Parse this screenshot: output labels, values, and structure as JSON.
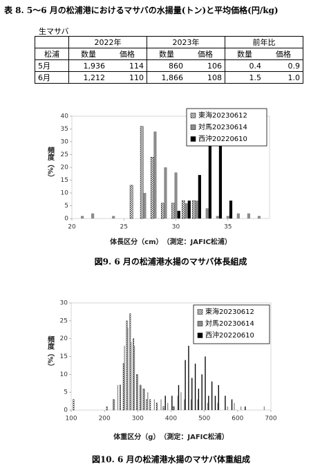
{
  "table": {
    "title": "表 8. 5～6 月の松浦港におけるマサバの水揚量(トン)と平均価格(円/kg)",
    "label": "生マサバ",
    "groups": [
      "2022年",
      "2023年",
      "前年比"
    ],
    "columns": [
      "松浦",
      "数量",
      "価格",
      "数量",
      "価格",
      "数量",
      "価格"
    ],
    "rows": [
      [
        "5月",
        "1,936",
        "114",
        "860",
        "106",
        "0.4",
        "0.9"
      ],
      [
        "6月",
        "1,212",
        "110",
        "1,866",
        "108",
        "1.5",
        "1.0"
      ]
    ]
  },
  "chart_data": [
    {
      "type": "bar",
      "xlabel": "体長区分（cm）　（測定：JAFIC松浦）",
      "ylabel": "頻度（%）",
      "caption": "図9.  6 月の松浦港水揚のマサバ体長組成",
      "x": [
        21,
        22,
        24,
        26,
        27,
        28,
        29,
        30,
        31,
        32,
        33,
        34,
        35,
        36,
        37,
        38
      ],
      "series": [
        {
          "name": "東海20230612",
          "color": "#ffffff",
          "hatch": true,
          "values": [
            0,
            0,
            0,
            13,
            36,
            24,
            6,
            6,
            7,
            7,
            0,
            0,
            0,
            0,
            0,
            0
          ]
        },
        {
          "name": "対馬20230614",
          "color": "#8c8c8c",
          "values": [
            1,
            2,
            1,
            0,
            10,
            34,
            20,
            18,
            6,
            7,
            4,
            1,
            1,
            2,
            2,
            1
          ]
        },
        {
          "name": "西沖20220610",
          "color": "#000000",
          "values": [
            0,
            0,
            0,
            0,
            0,
            0,
            0,
            3,
            7,
            17,
            38,
            33,
            7,
            0,
            0,
            0
          ]
        }
      ],
      "xlim": [
        20,
        39
      ],
      "xticks": [
        20,
        25,
        30,
        35
      ],
      "ylim": [
        0,
        40
      ],
      "yticks": [
        0,
        5,
        10,
        15,
        20,
        25,
        30,
        35,
        40
      ],
      "legend": "upper right"
    },
    {
      "type": "bar",
      "xlabel": "体重区分（g）　（測定：JAFIC松浦）",
      "ylabel": "頻度（%）",
      "caption": "図10. 6 月の松浦港水揚のマサバ体重組成",
      "x": [
        110,
        210,
        230,
        240,
        250,
        260,
        270,
        280,
        290,
        300,
        310,
        320,
        330,
        340,
        350,
        360,
        370,
        380,
        390,
        400,
        410,
        420,
        430,
        440,
        450,
        460,
        470,
        480,
        490,
        500,
        510,
        520,
        530,
        540,
        560,
        570,
        580,
        590,
        610,
        620,
        680
      ],
      "series": [
        {
          "name": "東海20230612",
          "color": "#ffffff",
          "hatch": true,
          "values": [
            3,
            1,
            3,
            0,
            7,
            13,
            25,
            27,
            20,
            10,
            7,
            6,
            3,
            3,
            0,
            2,
            0,
            1,
            0,
            0,
            1,
            0,
            0,
            0,
            0,
            0,
            0,
            0,
            0,
            0,
            0,
            0,
            0,
            0,
            0,
            0,
            0,
            0,
            0,
            0,
            0
          ]
        },
        {
          "name": "対馬20230614",
          "color": "#8c8c8c",
          "values": [
            0,
            0,
            3,
            7,
            0,
            18,
            23,
            19,
            18,
            10,
            7,
            6,
            5,
            0,
            3,
            0,
            3,
            0,
            2,
            0,
            1,
            4,
            5,
            3,
            0,
            3,
            0,
            3,
            0,
            0,
            2,
            0,
            0,
            2,
            0,
            1,
            0,
            2,
            1,
            0,
            1
          ]
        },
        {
          "name": "西沖20220610",
          "color": "#000000",
          "values": [
            0,
            0,
            0,
            0,
            0,
            0,
            0,
            0,
            0,
            0,
            0,
            0,
            0,
            0,
            0,
            0,
            0,
            4,
            0,
            4,
            0,
            7,
            0,
            14,
            18,
            9,
            13,
            6,
            10,
            15,
            4,
            8,
            4,
            7,
            4,
            0,
            3,
            0,
            0,
            1,
            0
          ]
        }
      ],
      "xlim": [
        100,
        700
      ],
      "xticks": [
        100,
        200,
        300,
        400,
        500,
        600,
        700
      ],
      "ylim": [
        0,
        30
      ],
      "yticks": [
        0,
        5,
        10,
        15,
        20,
        25,
        30
      ],
      "legend": "upper right"
    }
  ]
}
